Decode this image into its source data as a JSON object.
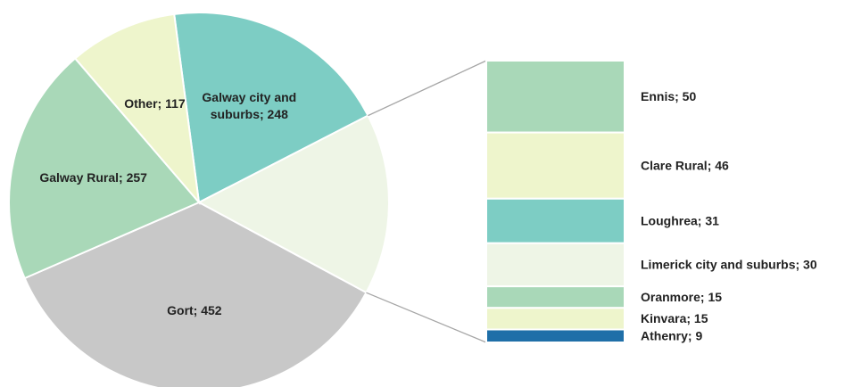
{
  "chart_data": {
    "type": "pie-of-bar",
    "pie": {
      "values": [
        248,
        196,
        452,
        257,
        117
      ],
      "value_labels": [
        "Galway city and suburbs;  248",
        null,
        "Gort; 452",
        "Galway Rural; 257",
        "Other; 117"
      ],
      "colors": [
        "#7dcdc4",
        "#eef5e6",
        "#c8c8c8",
        "#a9d8b8",
        "#eef5cc"
      ]
    },
    "bar": {
      "values": [
        50,
        46,
        31,
        30,
        15,
        15,
        9
      ],
      "value_labels": [
        "Ennis; 50",
        "Clare Rural; 46",
        "Loughrea; 31",
        "Limerick city and suburbs; 30",
        "Oranmore; 15",
        "Kinvara; 15",
        "Athenry; 9"
      ],
      "colors": [
        "#a9d8b8",
        "#eef5cc",
        "#7dcdc4",
        "#eef5e6",
        "#a9d8b8",
        "#eef5cc",
        "#1f6fa8"
      ]
    }
  }
}
